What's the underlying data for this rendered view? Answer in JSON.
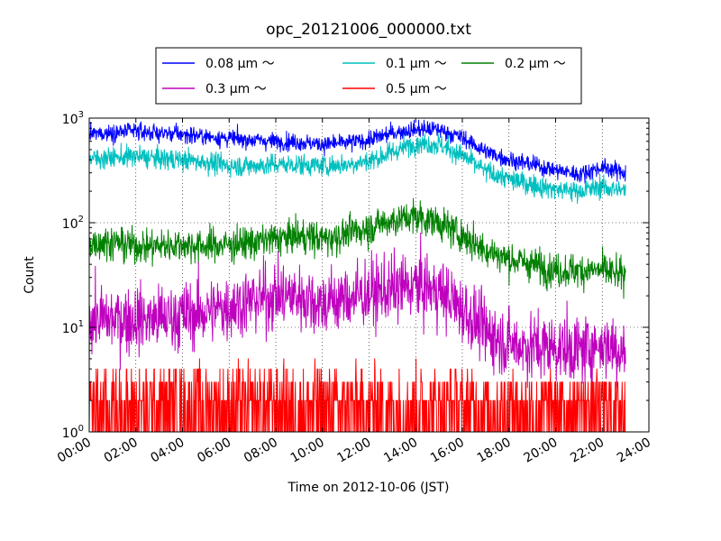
{
  "chart_data": {
    "type": "line",
    "title": "opc_20121006_000000.txt",
    "xlabel": "Time on 2012-10-06 (JST)",
    "ylabel": "Count",
    "xlim": [
      "00:00",
      "24:00"
    ],
    "ylim": [
      1,
      1000
    ],
    "yscale": "log",
    "grid": true,
    "legend_position": "top-center",
    "xticks": [
      "00:00",
      "02:00",
      "04:00",
      "06:00",
      "08:00",
      "10:00",
      "12:00",
      "14:00",
      "16:00",
      "18:00",
      "20:00",
      "22:00",
      "24:00"
    ],
    "yticks": [
      {
        "value": 1,
        "base": "10",
        "exp": "0"
      },
      {
        "value": 10,
        "base": "10",
        "exp": "1"
      },
      {
        "value": 100,
        "base": "10",
        "exp": "2"
      },
      {
        "value": 1000,
        "base": "10",
        "exp": "3"
      }
    ],
    "x": [
      "00:00",
      "01:00",
      "02:00",
      "03:00",
      "04:00",
      "05:00",
      "06:00",
      "07:00",
      "08:00",
      "09:00",
      "10:00",
      "11:00",
      "12:00",
      "13:00",
      "14:00",
      "15:00",
      "16:00",
      "17:00",
      "18:00",
      "19:00",
      "20:00",
      "21:00",
      "22:00",
      "23:00"
    ],
    "series": [
      {
        "name": "0.08 μm ～",
        "color": "#0000ff",
        "noise": 0.04,
        "values": [
          700,
          730,
          750,
          720,
          700,
          670,
          640,
          620,
          600,
          590,
          560,
          580,
          620,
          720,
          780,
          780,
          650,
          480,
          400,
          360,
          320,
          290,
          340,
          300
        ]
      },
      {
        "name": "0.1 μm ～",
        "color": "#00bfbf",
        "noise": 0.05,
        "values": [
          410,
          420,
          430,
          410,
          400,
          380,
          350,
          350,
          360,
          360,
          350,
          360,
          390,
          470,
          580,
          560,
          440,
          310,
          260,
          230,
          210,
          200,
          220,
          200
        ]
      },
      {
        "name": "0.2 μm ～",
        "color": "#008000",
        "noise": 0.08,
        "values": [
          65,
          65,
          60,
          60,
          62,
          60,
          62,
          65,
          70,
          75,
          70,
          78,
          90,
          105,
          115,
          100,
          75,
          55,
          45,
          40,
          35,
          35,
          35,
          30
        ]
      },
      {
        "name": "0.3 μm ～",
        "color": "#bf00bf",
        "noise": 0.16,
        "values": [
          12,
          12,
          12,
          12,
          13,
          14,
          16,
          18,
          20,
          20,
          17,
          19,
          21,
          23,
          25,
          22,
          15,
          9,
          7,
          6.5,
          6.5,
          6,
          7,
          6
        ]
      },
      {
        "name": "0.5 μm ～",
        "color": "#ff0000",
        "noise": 0,
        "values": [
          1.8,
          1.8,
          1.8,
          1.7,
          1.7,
          1.8,
          1.8,
          1.9,
          1.9,
          1.9,
          1.8,
          1.9,
          1.9,
          1.8,
          1.8,
          1.7,
          1.6,
          1.5,
          1.5,
          1.5,
          1.5,
          1.5,
          1.5,
          1.5
        ]
      }
    ]
  }
}
